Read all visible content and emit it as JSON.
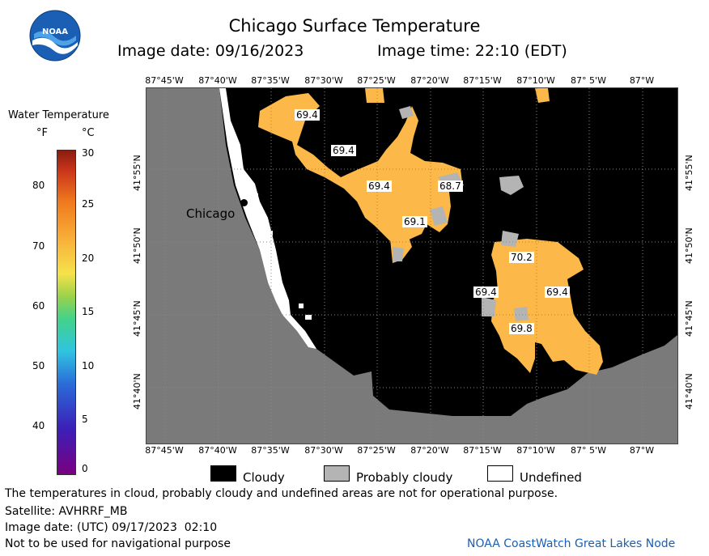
{
  "logo": {
    "text": "NOAA"
  },
  "header": {
    "title": "Chicago Surface Temperature",
    "image_date": "Image date: 09/16/2023",
    "image_time": "Image time: 22:10 (EDT)"
  },
  "colorbar": {
    "title": "Water Temperature",
    "unit_f": "°F",
    "unit_c": "°C",
    "f_ticks": [
      "80",
      "70",
      "60",
      "50",
      "40"
    ],
    "c_ticks": [
      "30",
      "25",
      "20",
      "15",
      "10",
      "5",
      "0"
    ]
  },
  "map": {
    "lon_labels": [
      "87°45'W",
      "87°40'W",
      "87°35'W",
      "87°30'W",
      "87°25'W",
      "87°20'W",
      "87°15'W",
      "87°10'W",
      "87° 5'W",
      "87°W"
    ],
    "lat_labels": [
      "41°55'N",
      "41°50'N",
      "41°45'N",
      "41°40'N"
    ],
    "city": "Chicago",
    "temperature_labels": [
      "69.4",
      "69.4",
      "69.4",
      "68.7",
      "69.1",
      "70.2",
      "69.4",
      "69.4",
      "69.8"
    ],
    "colors": {
      "cloudy": "#000000",
      "probably_cloudy": "#b4b4b4",
      "land": "#7a7a7a",
      "water_warm": "#fcb848",
      "undefined": "#ffffff"
    }
  },
  "legend": {
    "cloudy": "Cloudy",
    "probably_cloudy": "Probably cloudy",
    "undefined": "Undefined"
  },
  "footer": {
    "note": "The temperatures in cloud, probably cloudy and undefined areas are not for operational purpose.",
    "satellite": "Satellite: AVHRRF_MB",
    "utc_date": "Image date: (UTC) 09/17/2023  02:10",
    "nav_warning": "Not to be used for navigational purpose",
    "credit": "NOAA CoastWatch Great Lakes Node"
  }
}
